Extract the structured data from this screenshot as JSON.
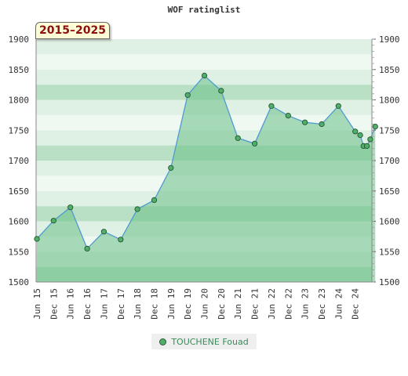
{
  "header": {
    "title": "WOF ratinglist",
    "period": "2015–2025"
  },
  "legend": {
    "label": "TOUCHENE Fouad"
  },
  "colors": {
    "band_light": "#f0f8f2",
    "band_mid": "#b9e0c5",
    "band_dark": "#9ed3af",
    "area_fill": "#6abf86",
    "line": "#4f9bd1",
    "marker": "#4fae6a"
  },
  "chart_data": {
    "type": "area",
    "title": "WOF ratinglist",
    "xlabel": "",
    "ylabel": "",
    "ylim": [
      1500,
      1900
    ],
    "yticks": [
      1500,
      1550,
      1600,
      1650,
      1700,
      1750,
      1800,
      1850,
      1900
    ],
    "xticks": [
      "Jun 15",
      "Dec 15",
      "Jun 16",
      "Dec 16",
      "Jun 17",
      "Dec 17",
      "Jun 18",
      "Dec 18",
      "Jun 19",
      "Dec 19",
      "Jun 20",
      "Dec 20",
      "Jun 21",
      "Dec 21",
      "Jun 22",
      "Dec 22",
      "Jun 23",
      "Dec 23",
      "Jun 24",
      "Dec 24"
    ],
    "series": [
      {
        "name": "TOUCHENE Fouad",
        "points": [
          {
            "x": 0,
            "y": 1571
          },
          {
            "x": 1,
            "y": 1601
          },
          {
            "x": 2,
            "y": 1623
          },
          {
            "x": 3,
            "y": 1555
          },
          {
            "x": 4,
            "y": 1583
          },
          {
            "x": 5,
            "y": 1570
          },
          {
            "x": 6,
            "y": 1620
          },
          {
            "x": 7,
            "y": 1635
          },
          {
            "x": 8,
            "y": 1688
          },
          {
            "x": 9,
            "y": 1808
          },
          {
            "x": 10,
            "y": 1840
          },
          {
            "x": 11,
            "y": 1815
          },
          {
            "x": 12,
            "y": 1737
          },
          {
            "x": 13,
            "y": 1728
          },
          {
            "x": 14,
            "y": 1790
          },
          {
            "x": 15,
            "y": 1774
          },
          {
            "x": 16,
            "y": 1763
          },
          {
            "x": 17,
            "y": 1760
          },
          {
            "x": 18,
            "y": 1790
          },
          {
            "x": 19,
            "y": 1748
          },
          {
            "x": 19.3,
            "y": 1742
          },
          {
            "x": 19.5,
            "y": 1724
          },
          {
            "x": 19.7,
            "y": 1724
          },
          {
            "x": 19.9,
            "y": 1735
          },
          {
            "x": 20.2,
            "y": 1756
          }
        ]
      }
    ]
  }
}
